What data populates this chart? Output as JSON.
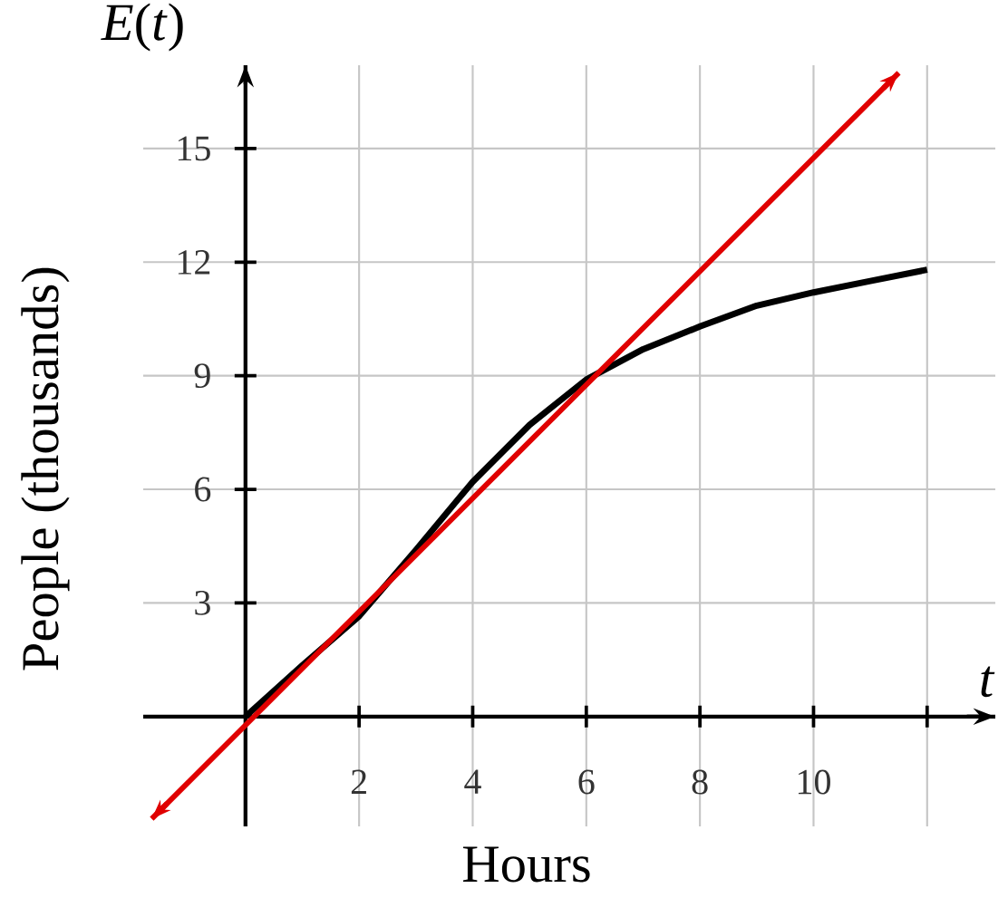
{
  "chart_data": {
    "type": "line",
    "xlabel": "Hours",
    "ylabel": "People (thousands)",
    "annotations": [
      "*E*(*t*)",
      "*t*"
    ],
    "xlim": [
      -1.8,
      13.2
    ],
    "ylim": [
      -2.9,
      17.2
    ],
    "xticks": [
      2,
      4,
      6,
      8,
      10,
      {
        "value": 12,
        "label": null
      }
    ],
    "yticks": [
      3,
      6,
      9,
      12,
      15
    ],
    "grid": true,
    "marker": "none",
    "line_style": "solid",
    "series": [
      {
        "color": "#000000",
        "x": [
          0,
          1,
          2,
          3,
          4,
          5,
          6,
          7,
          8,
          9,
          10,
          11,
          12
        ],
        "values": [
          0,
          1.35,
          2.65,
          4.4,
          6.2,
          7.7,
          8.9,
          9.7,
          10.3,
          10.85,
          11.2,
          11.5,
          11.8
        ]
      },
      {
        "color": "#e00000",
        "x": [
          -1.65,
          11.5
        ],
        "values": [
          -2.7,
          17
        ]
      }
    ]
  }
}
